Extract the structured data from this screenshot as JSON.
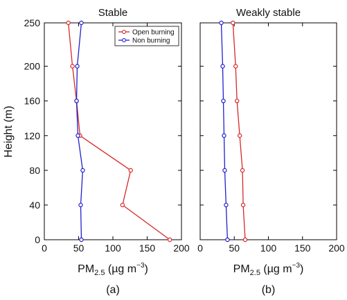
{
  "chart_data": [
    {
      "type": "line",
      "title": "Stable",
      "panel_label": "(a)",
      "xlabel": {
        "prefix": "PM",
        "subscript": "2.5",
        "units_prefix": " (µg m",
        "units_exp": "−3",
        "units_suffix": ")"
      },
      "ylabel": "Height (m)",
      "xlim": [
        0,
        200
      ],
      "ylim": [
        0,
        250
      ],
      "xticks": [
        0,
        50,
        100,
        150,
        200
      ],
      "yticks": [
        0,
        40,
        80,
        120,
        160,
        200,
        250
      ],
      "grid": false,
      "legend": {
        "position": "top-right",
        "show": true
      },
      "series": [
        {
          "name": "Open burning",
          "color": "#d62728",
          "points": [
            {
              "x": 183,
              "y": 0
            },
            {
              "x": 114,
              "y": 40
            },
            {
              "x": 126,
              "y": 80
            },
            {
              "x": 52,
              "y": 120
            },
            {
              "x": 47,
              "y": 160
            },
            {
              "x": 41,
              "y": 200
            },
            {
              "x": 35,
              "y": 250
            }
          ]
        },
        {
          "name": "Non burning",
          "color": "#1f1fcc",
          "points": [
            {
              "x": 54,
              "y": 0
            },
            {
              "x": 53,
              "y": 40
            },
            {
              "x": 56,
              "y": 80
            },
            {
              "x": 49,
              "y": 120
            },
            {
              "x": 47,
              "y": 160
            },
            {
              "x": 48,
              "y": 200
            },
            {
              "x": 54,
              "y": 250
            }
          ]
        }
      ]
    },
    {
      "type": "line",
      "title": "Weakly stable",
      "panel_label": "(b)",
      "xlabel": {
        "prefix": "PM",
        "subscript": "2.5",
        "units_prefix": " (µg m",
        "units_exp": "−3",
        "units_suffix": ")"
      },
      "ylabel": "",
      "xlim": [
        0,
        200
      ],
      "ylim": [
        0,
        250
      ],
      "xticks": [
        0,
        50,
        100,
        150,
        200
      ],
      "yticks": [
        0,
        40,
        80,
        120,
        160,
        200,
        250
      ],
      "grid": false,
      "legend": {
        "show": false
      },
      "series": [
        {
          "name": "Open burning",
          "color": "#d62728",
          "points": [
            {
              "x": 66,
              "y": 0
            },
            {
              "x": 63,
              "y": 40
            },
            {
              "x": 62,
              "y": 80
            },
            {
              "x": 58,
              "y": 120
            },
            {
              "x": 54,
              "y": 160
            },
            {
              "x": 52,
              "y": 200
            },
            {
              "x": 48,
              "y": 250
            }
          ]
        },
        {
          "name": "Non burning",
          "color": "#1f1fcc",
          "points": [
            {
              "x": 40,
              "y": 0
            },
            {
              "x": 38,
              "y": 40
            },
            {
              "x": 36,
              "y": 80
            },
            {
              "x": 35,
              "y": 120
            },
            {
              "x": 34,
              "y": 160
            },
            {
              "x": 33,
              "y": 200
            },
            {
              "x": 31,
              "y": 250
            }
          ]
        }
      ]
    }
  ]
}
